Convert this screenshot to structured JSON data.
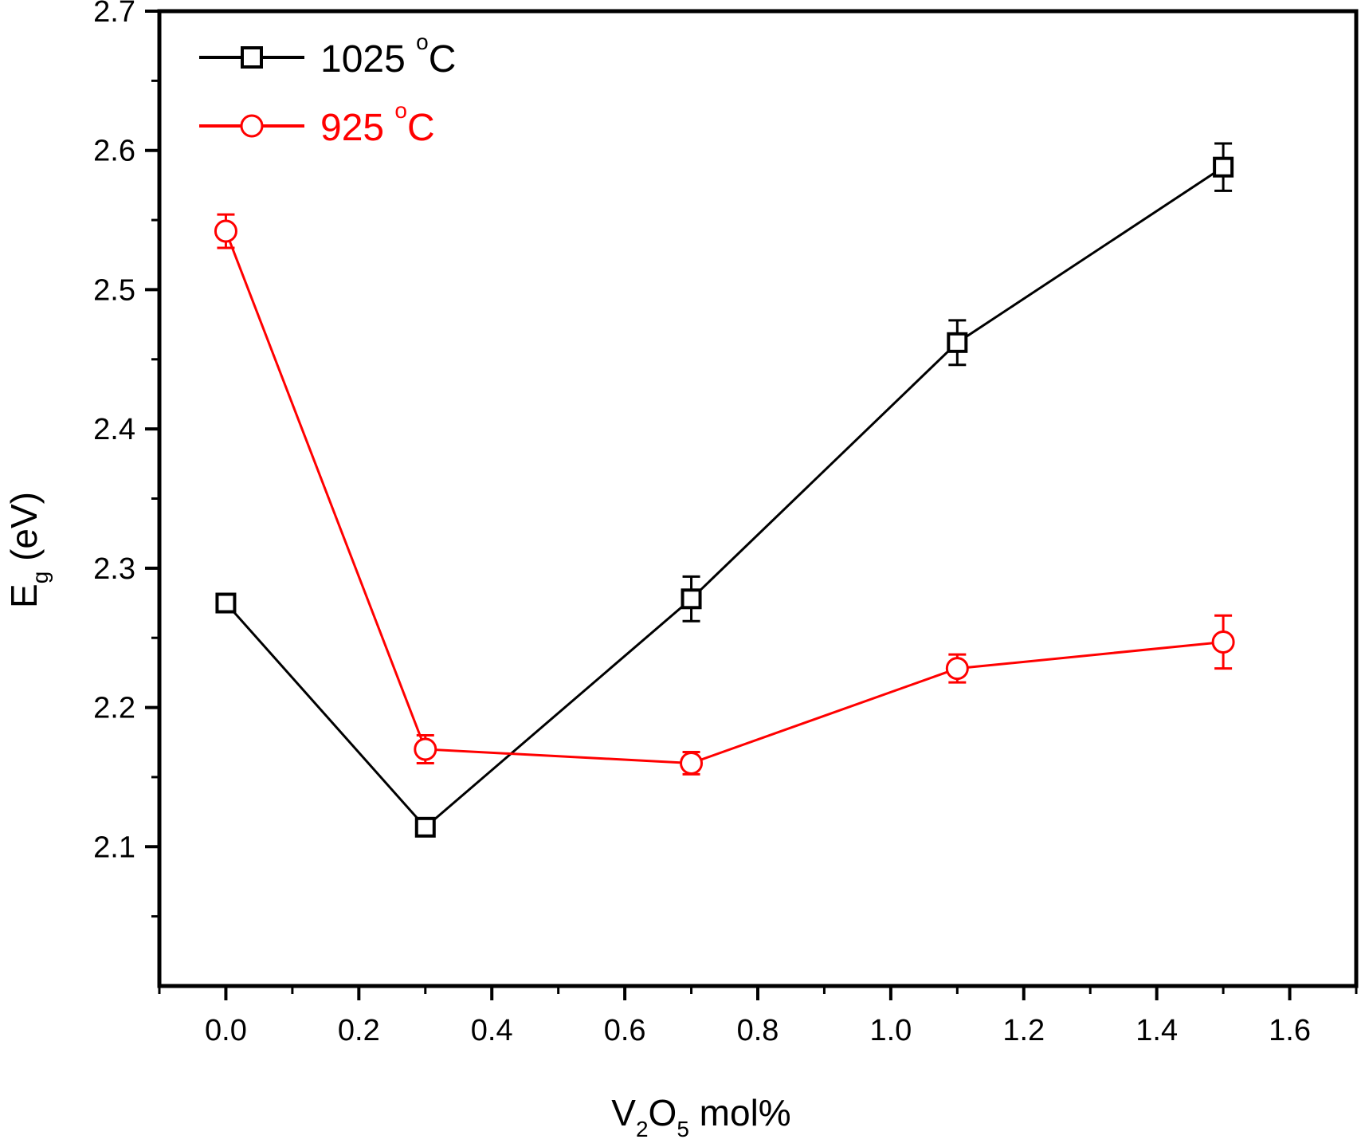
{
  "chart_data": {
    "type": "line",
    "xlabel": {
      "base": "V",
      "sub1": "2",
      "mid": "O",
      "sub2": "5",
      "rest": " mol%"
    },
    "ylabel": {
      "base": "E",
      "sub": "g",
      "rest": " (eV)"
    },
    "xlim": [
      -0.1,
      1.7
    ],
    "ylim": [
      2.0,
      2.7
    ],
    "x_ticks": [
      0.0,
      0.2,
      0.4,
      0.6,
      0.8,
      1.0,
      1.2,
      1.4,
      1.6
    ],
    "x_tick_labels": [
      "0.0",
      "0.2",
      "0.4",
      "0.6",
      "0.8",
      "1.0",
      "1.2",
      "1.4",
      "1.6"
    ],
    "y_ticks": [
      2.1,
      2.2,
      2.3,
      2.4,
      2.5,
      2.6,
      2.7
    ],
    "y_tick_labels": [
      "2.1",
      "2.2",
      "2.3",
      "2.4",
      "2.5",
      "2.6",
      "2.7"
    ],
    "legend_position": "top-left",
    "series": [
      {
        "name": "1025 °C",
        "label_num": "1025 ",
        "label_deg": "o",
        "label_unit": "C",
        "color": "#000000",
        "marker": "square",
        "x": [
          0.0,
          0.3,
          0.7,
          1.1,
          1.5
        ],
        "y": [
          2.275,
          2.114,
          2.278,
          2.462,
          2.588
        ],
        "err": [
          0.006,
          0.006,
          0.016,
          0.016,
          0.017
        ]
      },
      {
        "name": "925 °C",
        "label_num": "925 ",
        "label_deg": "o",
        "label_unit": "C",
        "color": "#ff0000",
        "marker": "circle",
        "x": [
          0.0,
          0.3,
          0.7,
          1.1,
          1.5
        ],
        "y": [
          2.542,
          2.17,
          2.16,
          2.228,
          2.247
        ],
        "err": [
          0.012,
          0.01,
          0.008,
          0.01,
          0.019
        ]
      }
    ]
  }
}
